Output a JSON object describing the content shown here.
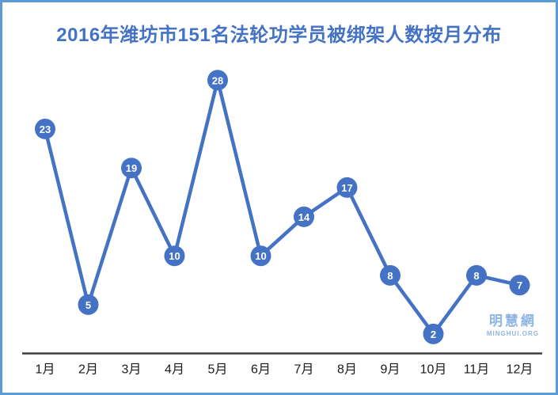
{
  "chart_data": {
    "type": "line",
    "title": "2016年潍坊市151名法轮功学员被绑架人数按月分布",
    "categories": [
      "1月",
      "2月",
      "3月",
      "4月",
      "5月",
      "6月",
      "7月",
      "8月",
      "9月",
      "10月",
      "11月",
      "12月"
    ],
    "values": [
      23,
      5,
      19,
      10,
      28,
      10,
      14,
      17,
      8,
      2,
      8,
      7
    ],
    "data_labels": true,
    "legend": "none",
    "grid": false,
    "ylim": [
      0,
      30
    ],
    "xlabel": "",
    "ylabel": ""
  },
  "watermark": {
    "chinese": "明慧網",
    "english": "MINGHUI.ORG"
  },
  "colors": {
    "line": "#4472c4",
    "marker_fill": "#4472c4",
    "marker_text": "#ffffff",
    "title": "#4472c4",
    "axis_line": "#3f3f3f",
    "tick_label": "#1a1a1a",
    "frame_border": "#5b9bd5",
    "watermark": "#8eb4e3",
    "background": "#ffffff"
  }
}
